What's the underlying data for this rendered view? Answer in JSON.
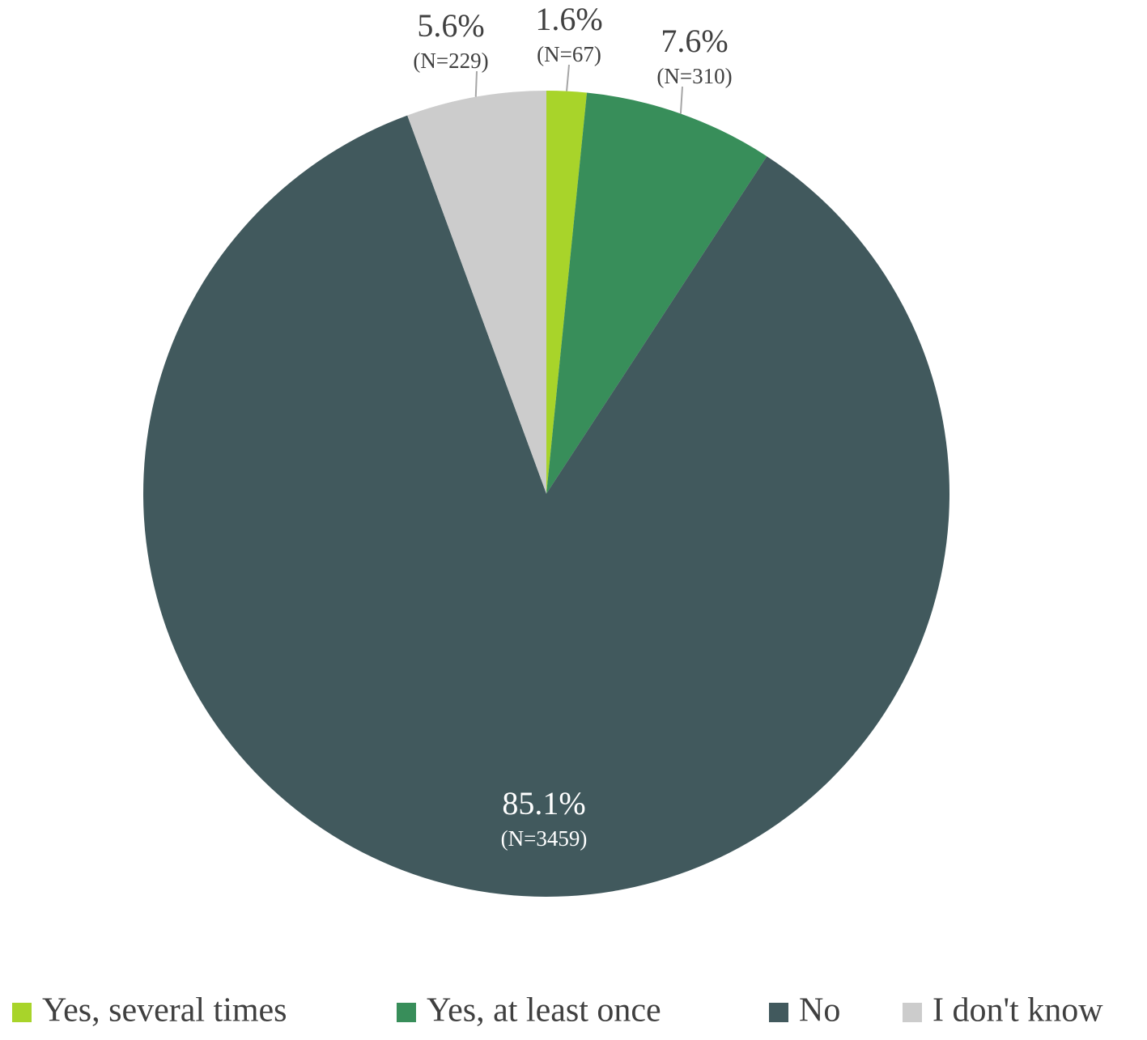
{
  "chart_data": {
    "type": "pie",
    "categories": [
      "Yes, several times",
      "Yes, at least once",
      "No",
      "I don't know"
    ],
    "values": [
      1.6,
      7.6,
      85.1,
      5.6
    ],
    "value_labels": [
      "1.6%",
      "7.6%",
      "85.1%",
      "5.6%"
    ],
    "sample_labels": [
      "(N=67)",
      "(N=310)",
      "(N=3459)",
      "(N=229)"
    ],
    "colors": [
      "#a8d42a",
      "#388e5a",
      "#41595d",
      "#cccccc"
    ],
    "legend": "bottom"
  }
}
